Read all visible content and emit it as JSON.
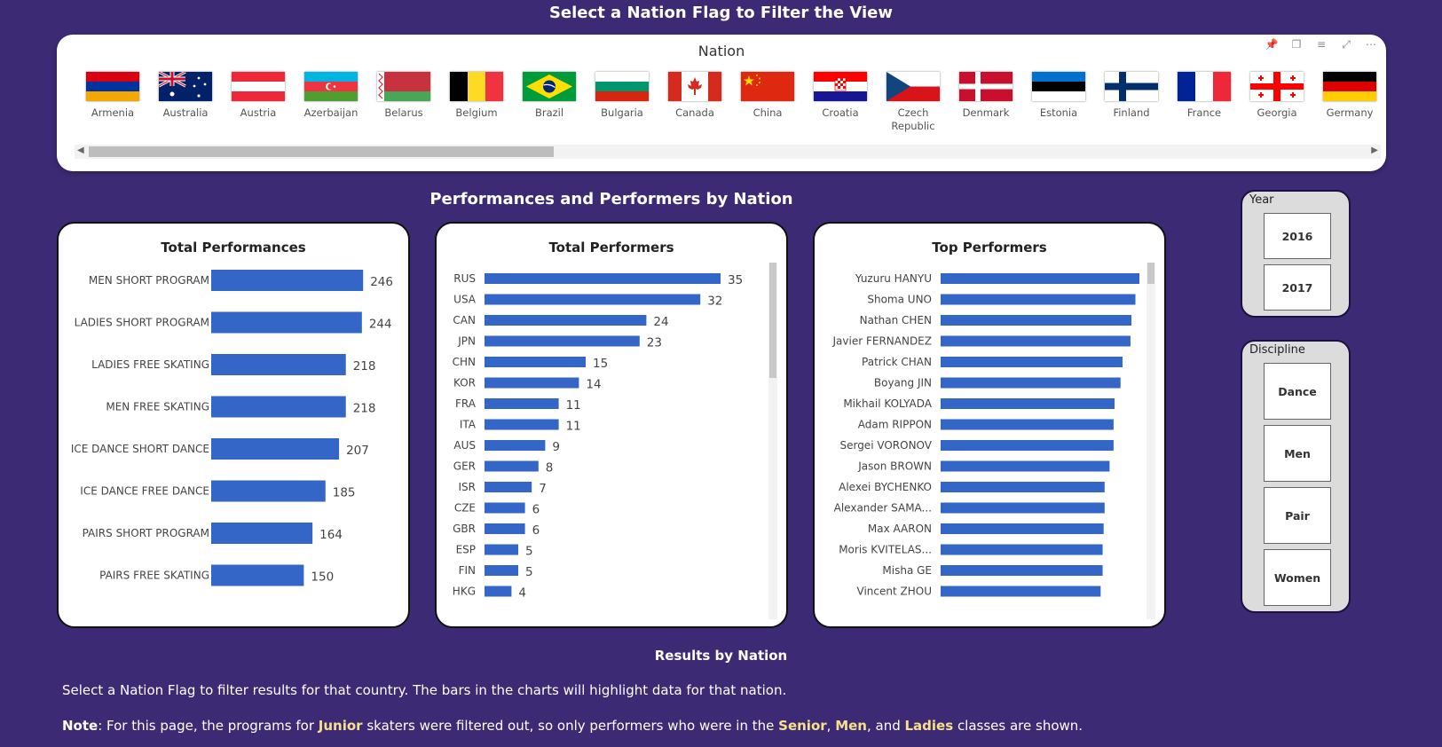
{
  "page_title": "Select a Nation Flag to Filter the View",
  "nation_slicer": {
    "title": "Nation",
    "toolbar_icons": [
      "pin-icon",
      "copy-icon",
      "filter-icon",
      "focus-mode-icon",
      "more-options-icon"
    ],
    "flags": [
      {
        "name": "Armenia",
        "flag": "armenia"
      },
      {
        "name": "Australia",
        "flag": "australia"
      },
      {
        "name": "Austria",
        "flag": "austria"
      },
      {
        "name": "Azerbaijan",
        "flag": "azerbaijan"
      },
      {
        "name": "Belarus",
        "flag": "belarus"
      },
      {
        "name": "Belgium",
        "flag": "belgium"
      },
      {
        "name": "Brazil",
        "flag": "brazil"
      },
      {
        "name": "Bulgaria",
        "flag": "bulgaria"
      },
      {
        "name": "Canada",
        "flag": "canada"
      },
      {
        "name": "China",
        "flag": "china"
      },
      {
        "name": "Croatia",
        "flag": "croatia"
      },
      {
        "name": "Czech Republic",
        "flag": "czech"
      },
      {
        "name": "Denmark",
        "flag": "denmark"
      },
      {
        "name": "Estonia",
        "flag": "estonia"
      },
      {
        "name": "Finland",
        "flag": "finland"
      },
      {
        "name": "France",
        "flag": "france"
      },
      {
        "name": "Georgia",
        "flag": "georgia"
      },
      {
        "name": "Germany",
        "flag": "germany"
      }
    ]
  },
  "section_title": "Performances and Performers by Nation",
  "chart_data": [
    {
      "type": "bar",
      "orientation": "horizontal",
      "title": "Total Performances",
      "categories": [
        "MEN SHORT PROGRAM",
        "LADIES SHORT PROGRAM",
        "LADIES FREE SKATING",
        "MEN FREE SKATING",
        "ICE DANCE SHORT DANCE",
        "ICE DANCE FREE DANCE",
        "PAIRS SHORT PROGRAM",
        "PAIRS FREE SKATING"
      ],
      "values": [
        246,
        244,
        218,
        218,
        207,
        185,
        164,
        150
      ],
      "data_labels": true,
      "color": "#3366c6"
    },
    {
      "type": "bar",
      "orientation": "horizontal",
      "title": "Total Performers",
      "categories": [
        "RUS",
        "USA",
        "CAN",
        "JPN",
        "CHN",
        "KOR",
        "FRA",
        "ITA",
        "AUS",
        "GER",
        "ISR",
        "CZE",
        "GBR",
        "ESP",
        "FIN",
        "HKG"
      ],
      "values": [
        35,
        32,
        24,
        23,
        15,
        14,
        11,
        11,
        9,
        8,
        7,
        6,
        6,
        5,
        5,
        4
      ],
      "data_labels": true,
      "color": "#3366c6"
    },
    {
      "type": "bar",
      "orientation": "horizontal",
      "title": "Top Performers",
      "categories": [
        "Yuzuru HANYU",
        "Shoma UNO",
        "Nathan CHEN",
        "Javier FERNANDEZ",
        "Patrick CHAN",
        "Boyang JIN",
        "Mikhail KOLYADA",
        "Adam RIPPON",
        "Sergei VORONOV",
        "Jason BROWN",
        "Alexei BYCHENKO",
        "Alexander SAMA...",
        "Max AARON",
        "Moris KVITELAS...",
        "Misha GE",
        "Vincent ZHOU"
      ],
      "values": [
        100,
        98,
        96,
        95.5,
        91.5,
        90.5,
        87.5,
        87,
        87,
        85,
        82.5,
        82.5,
        82,
        81.5,
        81.5,
        80.5
      ],
      "data_labels": false,
      "color": "#3366c6"
    }
  ],
  "year_slicer": {
    "title": "Year",
    "options": [
      "2016",
      "2017"
    ]
  },
  "discipline_slicer": {
    "title": "Discipline",
    "options": [
      "Dance",
      "Men",
      "Pair",
      "Women"
    ]
  },
  "footer": {
    "title": "Results by Nation",
    "description": "Select a Nation Flag to filter results for that country. The bars in the charts will highlight data for that nation.",
    "note_label": "Note",
    "note_parts": [
      ": For this page, the programs for ",
      "Junior",
      " skaters were filtered out, so only performers who were in the ",
      "Senior",
      ", ",
      "Men",
      ", and ",
      "Ladies",
      " classes are shown."
    ]
  },
  "colors": {
    "background": "#3c2a74",
    "bar": "#3366c6",
    "highlight_text": "#f7e08a"
  }
}
